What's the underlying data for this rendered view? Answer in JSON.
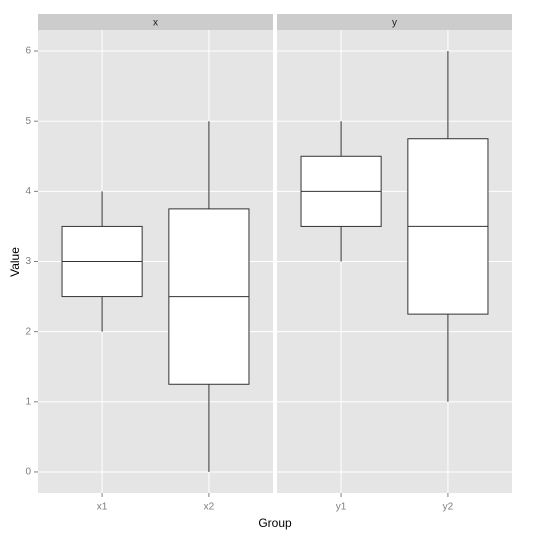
{
  "chart_data": {
    "type": "boxplot",
    "xlabel": "Group",
    "ylabel": "Value",
    "ylim": [
      -0.3,
      6.3
    ],
    "yticks": [
      0,
      1,
      2,
      3,
      4,
      5,
      6
    ],
    "grid": true,
    "box_color": "#ffffff",
    "line_color": "#333333",
    "facets": [
      {
        "label": "x",
        "categories": [
          "x1",
          "x2"
        ],
        "min": [
          2,
          0
        ],
        "q1": [
          2.5,
          1.25
        ],
        "median": [
          3,
          2.5
        ],
        "q3": [
          3.5,
          3.75
        ],
        "max": [
          4,
          5
        ]
      },
      {
        "label": "y",
        "categories": [
          "y1",
          "y2"
        ],
        "min": [
          3,
          1
        ],
        "q1": [
          3.5,
          2.25
        ],
        "median": [
          4,
          3.5
        ],
        "q3": [
          4.5,
          4.75
        ],
        "max": [
          5,
          6
        ]
      }
    ]
  }
}
